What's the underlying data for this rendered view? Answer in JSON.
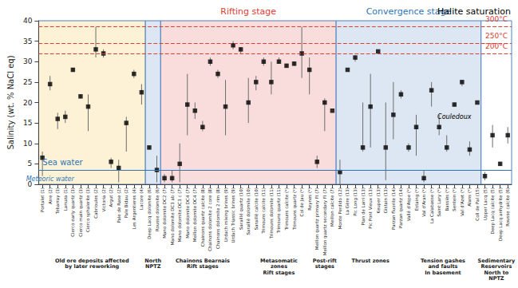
{
  "chart_data": {
    "type": "scatter",
    "y_label": "Salinity (wt. % NaCl eq)",
    "ylim": [
      0,
      40
    ],
    "yticks": [
      0,
      5,
      10,
      15,
      20,
      25,
      30,
      35,
      40
    ],
    "grid": false,
    "marker": "square",
    "color": "#000000",
    "categories": [
      "Portalet (1)",
      "Arre (2)",
      "Tebarray (3)",
      "Lanuza (1)",
      "Cierco early quartz (3)",
      "Cierco main quartz (3)",
      "Cierco sphalerite (3)",
      "Cabrioules (2)",
      "Victoria (2)",
      "Argut (2)",
      "Pale de Rase (2)",
      "Pale Bidau (2)",
      "Les Argentieres (4)",
      "Lacore (4)",
      "Deep Lacq dolomite (6)",
      "Rousse dolomite (6)",
      "Mano dolomite DC2 (7)",
      "Mano dolomite DC3 ab (7)",
      "Mano dolomite DC3 c (7)",
      "Mano dolomite DC4 (7)",
      "Meillon dolomite DC4 (7)",
      "Chainons quartz calcite (8)",
      "Chainons dolomite 2 core (8)",
      "Chainons dolomite 2 rim (8)",
      "Urdach mixing brines (9)",
      "Urdach Triassic brines (9)",
      "Saraillé quartz (10)",
      "Saraillé dolomite (10)",
      "Saraillé calcite (10)",
      "Trimouns calcite (11)",
      "Trimouns dolomite (11)",
      "Trimouns quartz (11)",
      "Trimouns calcite (*)",
      "Trimouns quartz (*)",
      "Col de Jau (*)",
      "Reynes (*)",
      "Meillon quartz primary FI (7)",
      "Meillon quartz secondary FI (7)",
      "Meillon calcite (7)",
      "Monte Perdido (12)",
      "La Gère (13)",
      "Pic Long (13)",
      "Plan de Larri (13)",
      "Pic Pont Vieux (13)",
      "Keuper (13)",
      "Gistain (13)",
      "Parzan fluorite (14)",
      "Parzan quartz (14)",
      "Vallé d'Aspe (*)",
      "Estaing (*)",
      "Val d'Aran (*)",
      "La Calabasse (*)",
      "Saint Lary (*)",
      "Bassiès (*)",
      "Sentein (*)",
      "Val d'Azet (*)",
      "Alans (*)",
      "Coll de Pal (15)",
      "Upper Lacq (5)",
      "Deep Lacq calcite (5)",
      "Deep Lacq anhydrite (5)",
      "Rousse calcite (6)"
    ],
    "values": [
      6.5,
      24.5,
      16,
      16.5,
      28,
      21.5,
      19,
      33,
      32,
      5.5,
      4,
      15,
      27,
      22.5,
      9,
      3.5,
      1.5,
      1.5,
      5,
      19.5,
      18,
      14,
      30,
      27,
      19,
      34,
      33,
      20,
      25,
      30,
      25,
      30,
      29,
      29.5,
      32,
      28,
      5.5,
      20,
      18,
      3,
      28,
      31,
      9,
      19,
      32.5,
      9,
      17,
      22,
      9,
      14,
      1.5,
      23,
      14,
      9,
      19.5,
      25,
      8.5,
      20,
      2,
      12,
      5,
      12
    ],
    "ranges": [
      [
        2,
        8
      ],
      [
        23,
        26.5
      ],
      [
        13.5,
        17.5
      ],
      [
        15,
        18
      ],
      [
        27.5,
        28.5
      ],
      [
        21,
        22
      ],
      [
        13,
        22
      ],
      [
        31,
        38.5
      ],
      [
        31,
        33
      ],
      [
        4,
        6.5
      ],
      [
        0.5,
        6
      ],
      [
        8,
        16.5
      ],
      [
        26,
        28
      ],
      [
        19.5,
        24.5
      ],
      [
        8.5,
        9.5
      ],
      [
        0.5,
        7
      ],
      [
        0.5,
        2.5
      ],
      [
        0.5,
        3.5
      ],
      [
        0.5,
        10
      ],
      [
        12,
        27
      ],
      [
        16,
        20
      ],
      [
        13,
        15.5
      ],
      [
        29,
        31
      ],
      [
        26,
        28
      ],
      [
        12,
        25.5
      ],
      [
        33,
        35
      ],
      [
        32,
        33.5
      ],
      [
        15,
        26
      ],
      [
        23,
        26.5
      ],
      [
        29,
        31
      ],
      [
        22,
        30
      ],
      [
        29.5,
        31
      ],
      [
        28.5,
        29.5
      ],
      [
        29,
        30
      ],
      [
        26,
        38.5
      ],
      [
        22,
        31
      ],
      [
        4,
        7
      ],
      [
        13,
        21
      ],
      null,
      [
        0,
        6
      ],
      null,
      [
        30,
        31.5
      ],
      [
        8,
        20
      ],
      [
        9,
        27
      ],
      null,
      [
        1,
        20
      ],
      [
        11,
        25
      ],
      [
        21,
        23
      ],
      [
        8,
        10
      ],
      [
        7,
        17
      ],
      [
        0.5,
        3.5
      ],
      [
        19,
        25
      ],
      [
        12,
        17
      ],
      [
        8,
        12
      ],
      [
        19,
        20
      ],
      [
        24,
        25.5
      ],
      [
        7,
        10.5
      ],
      null,
      [
        1,
        3
      ],
      [
        9,
        14.5
      ],
      [
        4.5,
        5.5
      ],
      [
        10,
        14
      ]
    ],
    "reference_lines": [
      {
        "label": "300°C",
        "value": 38.5,
        "color": "#e03c31",
        "line_style": "dashed"
      },
      {
        "label": "250°C",
        "value": 34.5,
        "color": "#e03c31",
        "line_style": "dashed"
      },
      {
        "label": "200°C",
        "value": 32,
        "color": "#e03c31",
        "line_style": "dashed"
      },
      {
        "label": "Sea water",
        "value": 3.5,
        "color": "#2e75b6",
        "line_style": "solid"
      }
    ],
    "regions": [
      {
        "from": "Portalet (1)",
        "to": "Lacore (4)",
        "color": "#fdf2d6"
      },
      {
        "from": "Deep Lacq dolomite (6)",
        "to": "Rousse dolomite (6)",
        "color": "#dde7f3"
      },
      {
        "from": "Mano dolomite DC2 (7)",
        "to": "Meillon calcite (7)",
        "color": "#f9dcdc"
      },
      {
        "from": "Monte Perdido (12)",
        "to": "Coll de Pal (15)",
        "color": "#dde7f3"
      },
      {
        "from": "Upper Lacq (5)",
        "to": "Rousse calcite (6)",
        "color": "#ffffff"
      }
    ],
    "stages": [
      {
        "label": "Rifting stage",
        "from": "Mano dolomite DC2 (7)",
        "to": "Meillon calcite (7)",
        "color": "#e03c31"
      },
      {
        "label": "Convergence stage",
        "from": "Monte Perdido (12)",
        "to": "Coll de Pal (15)",
        "color": "#2e75b6"
      },
      {
        "label": "Halite saturation",
        "from": "Upper Lacq (5)",
        "to": "Rousse calcite (6)",
        "color": "#000000"
      }
    ],
    "groups": [
      {
        "label": "Old ore deposits affected\nby later reworking",
        "from": "Portalet (1)",
        "to": "Lacore (4)"
      },
      {
        "label": "North\nNPTZ",
        "from": "Deep Lacq dolomite (6)",
        "to": "Rousse dolomite (6)"
      },
      {
        "label": "Chainons Bearnais\nRift stages",
        "from": "Mano dolomite DC2 (7)",
        "to": "Saraillé quartz (10)"
      },
      {
        "label": "Metasomatic\nzones\nRift stages",
        "from": "Saraillé dolomite (10)",
        "to": "Reynes (*)"
      },
      {
        "label": "Post-rift\nstages",
        "from": "Meillon quartz primary FI (7)",
        "to": "Meillon calcite (7)"
      },
      {
        "label": "Thrust zones",
        "from": "Monte Perdido (12)",
        "to": "Parzan quartz (14)"
      },
      {
        "label": "Tension gashes\nand faults\nIn basement",
        "from": "Vallé d'Aspe (*)",
        "to": "Coll de Pal (15)"
      },
      {
        "label": "Sedimentary\nReservoirs\nNorth to\nNPTZ",
        "from": "Upper Lacq (5)",
        "to": "Rousse calcite (6)"
      }
    ],
    "annotations": [
      {
        "text": "Meteoric water",
        "x": "Arre (2)",
        "y": 1.2,
        "color": "#2e75b6"
      },
      {
        "text": "Couledoux",
        "x": "Sentein (*)",
        "y": 16.5,
        "color": "#000000"
      }
    ]
  }
}
